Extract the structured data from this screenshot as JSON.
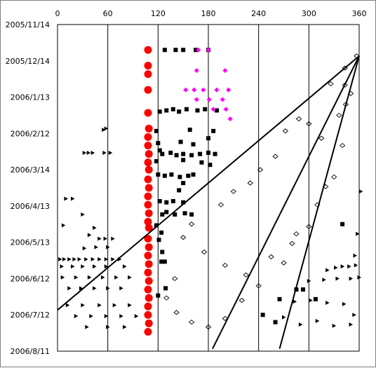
{
  "chart_data": {
    "type": "scatter",
    "title": "",
    "xlabel": "",
    "ylabel": "",
    "x_axis": {
      "position": "top",
      "range": [
        0,
        360
      ],
      "ticks": [
        0,
        60,
        120,
        180,
        240,
        300,
        360
      ],
      "tick_labels": [
        "0",
        "60",
        "120",
        "180",
        "240",
        "300",
        "360"
      ]
    },
    "y_axis": {
      "direction": "down",
      "range": [
        "2005/11/14",
        "2006/8/11"
      ],
      "ticks": [
        "2005/11/14",
        "2005/12/14",
        "2006/1/13",
        "2006/2/12",
        "2006/3/14",
        "2006/4/13",
        "2006/5/13",
        "2006/6/12",
        "2006/7/12",
        "2006/8/11"
      ],
      "tick_labels": [
        "2005/11/14",
        "2005/12/14",
        "2006/1/13",
        "2006/2/12",
        "2006/3/14",
        "2006/4/13",
        "2006/5/13",
        "2006/6/12",
        "2006/7/12",
        "2006/8/11"
      ]
    },
    "grid": {
      "vertical": true,
      "horizontal": false
    },
    "legend": "none",
    "series": [
      {
        "marker": "filled-circle",
        "color": "#ff0000",
        "points": [
          [
            108,
            "2005/12/5"
          ],
          [
            108,
            "2005/12/18"
          ],
          [
            108,
            "2005/12/25"
          ],
          [
            108,
            "2006/1/7"
          ],
          [
            108,
            "2006/1/26"
          ],
          [
            109,
            "2006/2/8"
          ],
          [
            108,
            "2006/2/15"
          ],
          [
            108,
            "2006/2/22"
          ],
          [
            109,
            "2006/3/1"
          ],
          [
            108,
            "2006/3/8"
          ],
          [
            109,
            "2006/3/14"
          ],
          [
            108,
            "2006/3/22"
          ],
          [
            109,
            "2006/3/29"
          ],
          [
            108,
            "2006/4/5"
          ],
          [
            108,
            "2006/4/12"
          ],
          [
            109,
            "2006/4/19"
          ],
          [
            108,
            "2006/4/26"
          ],
          [
            109,
            "2006/5/1"
          ],
          [
            108,
            "2006/5/10"
          ],
          [
            109,
            "2006/5/17"
          ],
          [
            108,
            "2006/5/24"
          ],
          [
            109,
            "2006/5/31"
          ],
          [
            108,
            "2006/6/7"
          ],
          [
            109,
            "2006/6/14"
          ],
          [
            108,
            "2006/6/21"
          ],
          [
            109,
            "2006/6/28"
          ],
          [
            108,
            "2006/7/5"
          ],
          [
            108,
            "2006/7/12"
          ],
          [
            109,
            "2006/7/19"
          ],
          [
            108,
            "2006/7/26"
          ]
        ]
      },
      {
        "marker": "filled-square",
        "color": "#000000",
        "points": [
          [
            128,
            "2005/12/5"
          ],
          [
            141,
            "2005/12/5"
          ],
          [
            150,
            "2005/12/5"
          ],
          [
            165,
            "2005/12/5"
          ],
          [
            180,
            "2005/12/5"
          ],
          [
            122,
            "2006/1/25"
          ],
          [
            130,
            "2006/1/24"
          ],
          [
            138,
            "2006/1/23"
          ],
          [
            145,
            "2006/1/25"
          ],
          [
            154,
            "2006/1/23"
          ],
          [
            167,
            "2006/1/24"
          ],
          [
            176,
            "2006/1/23"
          ],
          [
            190,
            "2006/1/24"
          ],
          [
            118,
            "2006/2/10"
          ],
          [
            158,
            "2006/2/9"
          ],
          [
            186,
            "2006/2/10"
          ],
          [
            180,
            "2006/2/16"
          ],
          [
            120,
            "2006/2/20"
          ],
          [
            147,
            "2006/2/19"
          ],
          [
            162,
            "2006/2/21"
          ],
          [
            122,
            "2006/2/26"
          ],
          [
            125,
            "2006/3/1"
          ],
          [
            135,
            "2006/2/28"
          ],
          [
            142,
            "2006/3/2"
          ],
          [
            150,
            "2006/3/1"
          ],
          [
            160,
            "2006/3/2"
          ],
          [
            170,
            "2006/3/1"
          ],
          [
            180,
            "2006/2/28"
          ],
          [
            188,
            "2006/3/1"
          ],
          [
            118,
            "2006/3/7"
          ],
          [
            150,
            "2006/3/6"
          ],
          [
            172,
            "2006/3/8"
          ],
          [
            182,
            "2006/3/10"
          ],
          [
            120,
            "2006/3/18"
          ],
          [
            128,
            "2006/3/19"
          ],
          [
            136,
            "2006/3/18"
          ],
          [
            146,
            "2006/3/20"
          ],
          [
            156,
            "2006/3/19"
          ],
          [
            162,
            "2006/3/18"
          ],
          [
            150,
            "2006/3/25"
          ],
          [
            145,
            "2006/3/31"
          ],
          [
            122,
            "2006/4/9"
          ],
          [
            130,
            "2006/4/10"
          ],
          [
            138,
            "2006/4/9"
          ],
          [
            150,
            "2006/4/10"
          ],
          [
            125,
            "2006/4/20"
          ],
          [
            130,
            "2006/4/18"
          ],
          [
            140,
            "2006/4/20"
          ],
          [
            152,
            "2006/4/19"
          ],
          [
            160,
            "2006/4/20"
          ],
          [
            118,
            "2006/4/29"
          ],
          [
            124,
            "2006/5/5"
          ],
          [
            121,
            "2006/5/11"
          ],
          [
            125,
            "2006/5/21"
          ],
          [
            124,
            "2006/5/29"
          ],
          [
            128,
            "2006/5/29"
          ],
          [
            129,
            "2006/6/20"
          ],
          [
            120,
            "2006/6/26"
          ],
          [
            340,
            "2006/4/28"
          ],
          [
            265,
            "2006/6/29"
          ],
          [
            285,
            "2006/6/21"
          ],
          [
            293,
            "2006/6/21"
          ],
          [
            308,
            "2006/6/29"
          ],
          [
            260,
            "2006/7/18"
          ],
          [
            245,
            "2006/7/12"
          ]
        ]
      },
      {
        "marker": "diamond",
        "color": "#ff00ff",
        "points": [
          [
            168,
            "2005/12/5"
          ],
          [
            180,
            "2005/12/5"
          ],
          [
            166,
            "2005/12/22"
          ],
          [
            200,
            "2005/12/22"
          ],
          [
            153,
            "2006/1/7"
          ],
          [
            163,
            "2006/1/7"
          ],
          [
            174,
            "2006/1/7"
          ],
          [
            190,
            "2006/1/7"
          ],
          [
            204,
            "2006/1/7"
          ],
          [
            166,
            "2006/1/15"
          ],
          [
            181,
            "2006/1/15"
          ],
          [
            197,
            "2006/1/15"
          ],
          [
            186,
            "2006/1/23"
          ],
          [
            201,
            "2006/1/23"
          ],
          [
            206,
            "2006/1/31"
          ]
        ]
      },
      {
        "marker": "open-diamond",
        "color": "#000000",
        "description": "dense field of open diamonds spanning 2006/1 to 2006/7",
        "points": [
          [
            357,
            "2005/12/10"
          ],
          [
            343,
            "2005/12/20"
          ],
          [
            326,
            "2006/1/2"
          ],
          [
            343,
            "2006/1/3"
          ],
          [
            344,
            "2006/1/19"
          ],
          [
            336,
            "2006/1/28"
          ],
          [
            288,
            "2006/1/31"
          ],
          [
            272,
            "2006/2/10"
          ],
          [
            300,
            "2006/2/4"
          ],
          [
            315,
            "2006/2/16"
          ],
          [
            260,
            "2006/3/3"
          ],
          [
            242,
            "2006/3/14"
          ],
          [
            230,
            "2006/3/25"
          ],
          [
            210,
            "2006/4/1"
          ],
          [
            195,
            "2006/4/12"
          ],
          [
            160,
            "2006/4/28"
          ],
          [
            150,
            "2006/5/9"
          ],
          [
            175,
            "2006/5/21"
          ],
          [
            200,
            "2006/6/1"
          ],
          [
            225,
            "2006/6/9"
          ],
          [
            255,
            "2006/5/25"
          ],
          [
            280,
            "2006/5/14"
          ],
          [
            300,
            "2006/4/30"
          ],
          [
            330,
            "2006/3/20"
          ],
          [
            140,
            "2006/6/12"
          ],
          [
            130,
            "2006/6/28"
          ],
          [
            142,
            "2006/7/10"
          ],
          [
            160,
            "2006/7/18"
          ],
          [
            180,
            "2006/7/22"
          ],
          [
            200,
            "2006/7/15"
          ],
          [
            220,
            "2006/6/30"
          ],
          [
            240,
            "2006/6/18"
          ],
          [
            270,
            "2006/5/30"
          ],
          [
            285,
            "2006/5/6"
          ],
          [
            310,
            "2006/4/12"
          ],
          [
            320,
            "2006/3/28"
          ],
          [
            340,
            "2006/2/22"
          ],
          [
            350,
            "2006/1/10"
          ]
        ]
      },
      {
        "marker": "right-triangle",
        "color": "#000000",
        "description": "scattered triangles on the left (0–95) and right (265–360)",
        "points": [
          [
            55,
            "2006/2/9"
          ],
          [
            58,
            "2006/2/8"
          ],
          [
            32,
            "2006/2/28"
          ],
          [
            37,
            "2006/2/28"
          ],
          [
            42,
            "2006/2/28"
          ],
          [
            56,
            "2006/2/28"
          ],
          [
            63,
            "2006/2/28"
          ],
          [
            10,
            "2006/4/7"
          ],
          [
            18,
            "2006/4/7"
          ],
          [
            7,
            "2006/4/29"
          ],
          [
            30,
            "2006/4/20"
          ],
          [
            44,
            "2006/5/1"
          ],
          [
            38,
            "2006/5/7"
          ],
          [
            50,
            "2006/5/10"
          ],
          [
            57,
            "2006/5/10"
          ],
          [
            66,
            "2006/5/10"
          ],
          [
            32,
            "2006/5/18"
          ],
          [
            46,
            "2006/5/17"
          ],
          [
            60,
            "2006/5/17"
          ],
          [
            3,
            "2006/5/27"
          ],
          [
            8,
            "2006/5/27"
          ],
          [
            14,
            "2006/5/27"
          ],
          [
            20,
            "2006/5/27"
          ],
          [
            26,
            "2006/5/27"
          ],
          [
            34,
            "2006/5/27"
          ],
          [
            42,
            "2006/5/27"
          ],
          [
            50,
            "2006/5/27"
          ],
          [
            58,
            "2006/5/27"
          ],
          [
            66,
            "2006/5/27"
          ],
          [
            74,
            "2006/5/27"
          ],
          [
            5,
            "2006/6/2"
          ],
          [
            18,
            "2006/6/2"
          ],
          [
            30,
            "2006/6/2"
          ],
          [
            44,
            "2006/6/2"
          ],
          [
            58,
            "2006/6/2"
          ],
          [
            80,
            "2006/6/2"
          ],
          [
            6,
            "2006/6/11"
          ],
          [
            22,
            "2006/6/11"
          ],
          [
            38,
            "2006/6/11"
          ],
          [
            54,
            "2006/6/11"
          ],
          [
            70,
            "2006/6/11"
          ],
          [
            86,
            "2006/6/11"
          ],
          [
            14,
            "2006/6/20"
          ],
          [
            28,
            "2006/6/20"
          ],
          [
            44,
            "2006/6/20"
          ],
          [
            60,
            "2006/6/20"
          ],
          [
            76,
            "2006/6/20"
          ],
          [
            12,
            "2006/7/4"
          ],
          [
            30,
            "2006/7/4"
          ],
          [
            50,
            "2006/7/4"
          ],
          [
            68,
            "2006/7/4"
          ],
          [
            86,
            "2006/7/4"
          ],
          [
            22,
            "2006/7/13"
          ],
          [
            40,
            "2006/7/13"
          ],
          [
            58,
            "2006/7/13"
          ],
          [
            76,
            "2006/7/13"
          ],
          [
            94,
            "2006/7/13"
          ],
          [
            35,
            "2006/7/22"
          ],
          [
            60,
            "2006/7/22"
          ],
          [
            80,
            "2006/7/22"
          ],
          [
            362,
            "2006/4/1"
          ],
          [
            358,
            "2006/5/6"
          ],
          [
            355,
            "2006/5/24"
          ],
          [
            322,
            "2006/6/5"
          ],
          [
            332,
            "2006/6/3"
          ],
          [
            340,
            "2006/6/2"
          ],
          [
            348,
            "2006/6/2"
          ],
          [
            356,
            "2006/6/1"
          ],
          [
            300,
            "2006/6/14"
          ],
          [
            318,
            "2006/6/13"
          ],
          [
            334,
            "2006/6/12"
          ],
          [
            350,
            "2006/6/12"
          ],
          [
            360,
            "2006/6/11"
          ],
          [
            283,
            "2006/7/1"
          ],
          [
            302,
            "2006/6/30"
          ],
          [
            322,
            "2006/7/2"
          ],
          [
            342,
            "2006/7/3"
          ],
          [
            354,
            "2006/7/12"
          ],
          [
            270,
            "2006/7/14"
          ],
          [
            290,
            "2006/7/20"
          ],
          [
            310,
            "2006/7/17"
          ],
          [
            330,
            "2006/7/21"
          ],
          [
            350,
            "2006/7/20"
          ]
        ]
      }
    ],
    "trend_lines": [
      {
        "from": [
          0,
          "2006/7/8"
        ],
        "to": [
          360,
          "2005/12/10"
        ]
      },
      {
        "from": [
          185,
          "2006/8/9"
        ],
        "to": [
          360,
          "2005/12/10"
        ]
      },
      {
        "from": [
          265,
          "2006/8/9"
        ],
        "to": [
          360,
          "2005/12/10"
        ]
      }
    ]
  }
}
